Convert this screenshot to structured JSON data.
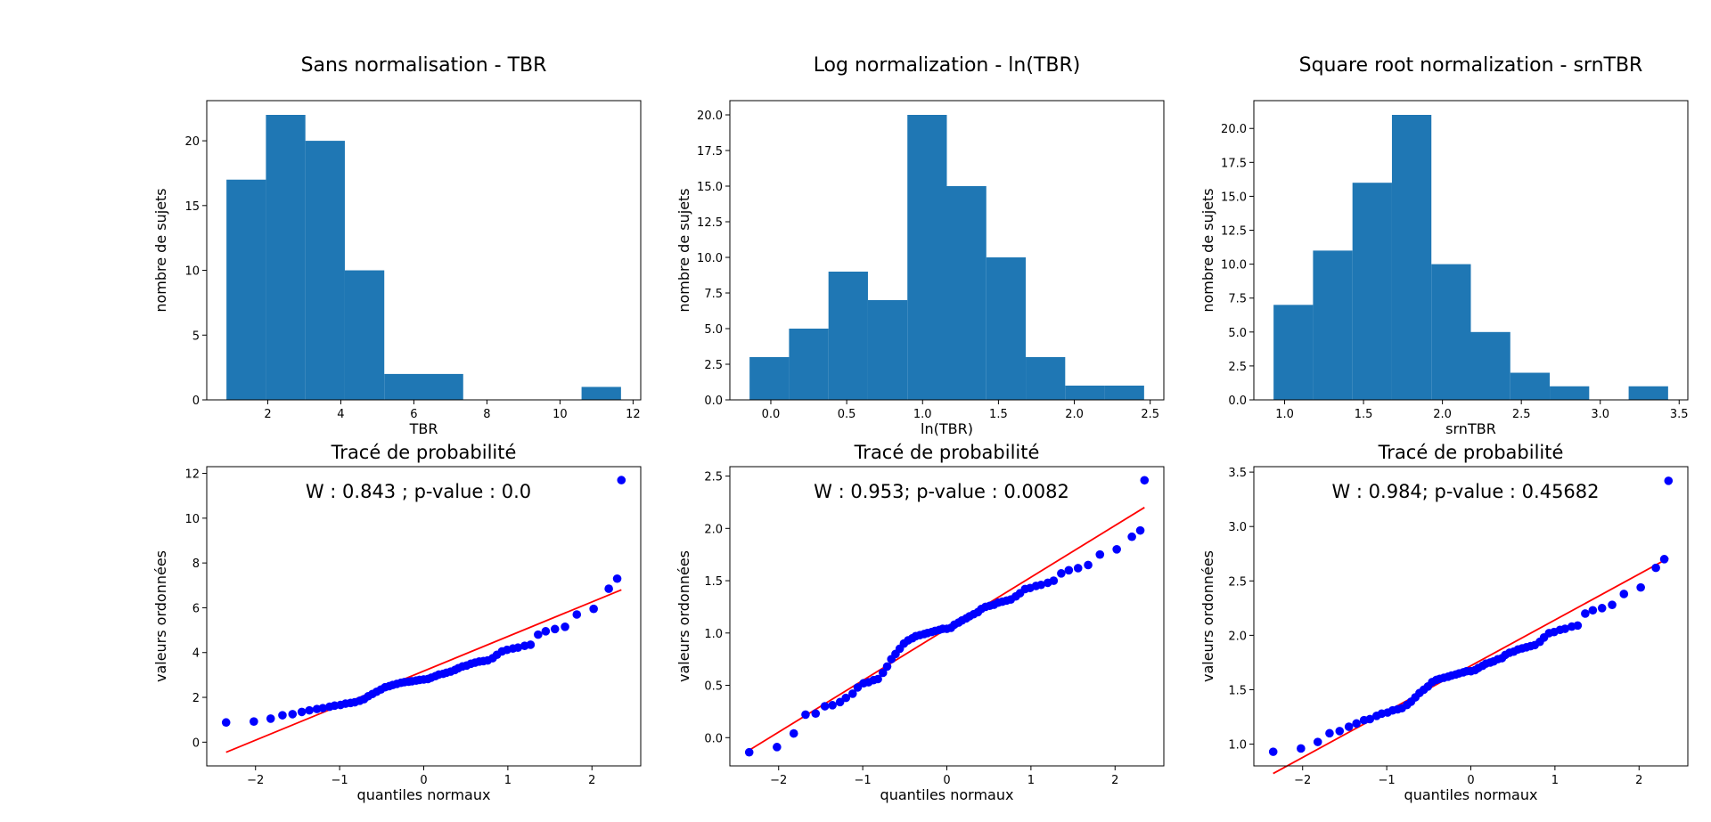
{
  "colors": {
    "bar": "#1f77b4",
    "points": "#0000ff",
    "fit_line": "#ff0000",
    "axes": "#000000"
  },
  "chart_data": [
    {
      "type": "histogram",
      "title": "Sans normalisation - TBR",
      "xlabel": "TBR",
      "ylabel": "nombre de sujets",
      "bin_edges": [
        0.87,
        1.95,
        3.03,
        4.11,
        5.19,
        6.27,
        7.35,
        8.43,
        9.51,
        10.59,
        11.67
      ],
      "counts": [
        17,
        22,
        20,
        10,
        2,
        2,
        0,
        0,
        0,
        1
      ],
      "xlim": [
        0.33,
        12.21
      ],
      "ylim": [
        0,
        23.1
      ],
      "xticks": [
        2,
        4,
        6,
        8,
        10,
        12
      ],
      "yticks": [
        0,
        5,
        10,
        15,
        20
      ],
      "ytick_labels": [
        "0",
        "5",
        "10",
        "15",
        "20"
      ]
    },
    {
      "type": "histogram",
      "title": "Log normalization - ln(TBR)",
      "xlabel": "ln(TBR)",
      "ylabel": "nombre de sujets",
      "bin_edges": [
        -0.14,
        0.12,
        0.38,
        0.64,
        0.9,
        1.16,
        1.42,
        1.68,
        1.94,
        2.2,
        2.46
      ],
      "counts": [
        3,
        5,
        9,
        7,
        20,
        15,
        10,
        3,
        1,
        1
      ],
      "xlim": [
        -0.27,
        2.59
      ],
      "ylim": [
        0,
        21
      ],
      "xticks": [
        0.0,
        0.5,
        1.0,
        1.5,
        2.0,
        2.5
      ],
      "xtick_labels": [
        "0.0",
        "0.5",
        "1.0",
        "1.5",
        "2.0",
        "2.5"
      ],
      "yticks": [
        0,
        2.5,
        5,
        7.5,
        10,
        12.5,
        15,
        17.5,
        20
      ],
      "ytick_labels": [
        "0.0",
        "2.5",
        "5.0",
        "7.5",
        "10.0",
        "12.5",
        "15.0",
        "17.5",
        "20.0"
      ]
    },
    {
      "type": "histogram",
      "title": "Square root normalization - srnTBR",
      "xlabel": "srnTBR",
      "ylabel": "nombre de sujets",
      "bin_edges": [
        0.93,
        1.18,
        1.43,
        1.68,
        1.93,
        2.18,
        2.43,
        2.68,
        2.93,
        3.18,
        3.43
      ],
      "counts": [
        7,
        11,
        16,
        21,
        10,
        5,
        2,
        1,
        0,
        1
      ],
      "xlim": [
        0.805,
        3.555
      ],
      "ylim": [
        0,
        22.05
      ],
      "xticks": [
        1.0,
        1.5,
        2.0,
        2.5,
        3.0,
        3.5
      ],
      "xtick_labels": [
        "1.0",
        "1.5",
        "2.0",
        "2.5",
        "3.0",
        "3.5"
      ],
      "yticks": [
        0,
        2.5,
        5,
        7.5,
        10,
        12.5,
        15,
        17.5,
        20
      ],
      "ytick_labels": [
        "0.0",
        "2.5",
        "5.0",
        "7.5",
        "10.0",
        "12.5",
        "15.0",
        "17.5",
        "20.0"
      ]
    },
    {
      "type": "scatter",
      "title": "Tracé de probabilité",
      "annotation": "W : 0.843 ; p-value : 0.0",
      "xlabel": "quantiles normaux",
      "ylabel": "valeurs ordonnées",
      "xlim": [
        -2.58,
        2.58
      ],
      "ylim": [
        -1.06,
        12.3
      ],
      "xticks": [
        -2,
        -1,
        0,
        1,
        2
      ],
      "yticks": [
        0,
        2,
        4,
        6,
        8,
        10,
        12
      ],
      "fit_line": {
        "x": [
          -2.35,
          2.35
        ],
        "y": [
          -0.45,
          6.8
        ]
      },
      "points": [
        [
          -2.35,
          0.88
        ],
        [
          -2.02,
          0.92
        ],
        [
          -1.82,
          1.05
        ],
        [
          -1.68,
          1.2
        ],
        [
          -1.56,
          1.25
        ],
        [
          -1.45,
          1.35
        ],
        [
          -1.36,
          1.42
        ],
        [
          -1.27,
          1.48
        ],
        [
          -1.2,
          1.52
        ],
        [
          -1.12,
          1.58
        ],
        [
          -1.06,
          1.63
        ],
        [
          -0.99,
          1.66
        ],
        [
          -0.93,
          1.72
        ],
        [
          -0.87,
          1.75
        ],
        [
          -0.82,
          1.78
        ],
        [
          -0.76,
          1.85
        ],
        [
          -0.71,
          1.92
        ],
        [
          -0.66,
          2.05
        ],
        [
          -0.61,
          2.15
        ],
        [
          -0.56,
          2.25
        ],
        [
          -0.51,
          2.35
        ],
        [
          -0.46,
          2.45
        ],
        [
          -0.41,
          2.5
        ],
        [
          -0.37,
          2.55
        ],
        [
          -0.32,
          2.6
        ],
        [
          -0.27,
          2.65
        ],
        [
          -0.23,
          2.68
        ],
        [
          -0.18,
          2.7
        ],
        [
          -0.14,
          2.72
        ],
        [
          -0.09,
          2.75
        ],
        [
          -0.05,
          2.78
        ],
        [
          0.0,
          2.8
        ],
        [
          0.05,
          2.82
        ],
        [
          0.09,
          2.88
        ],
        [
          0.14,
          2.95
        ],
        [
          0.18,
          3.02
        ],
        [
          0.23,
          3.05
        ],
        [
          0.27,
          3.1
        ],
        [
          0.32,
          3.15
        ],
        [
          0.37,
          3.22
        ],
        [
          0.41,
          3.3
        ],
        [
          0.46,
          3.38
        ],
        [
          0.51,
          3.42
        ],
        [
          0.56,
          3.5
        ],
        [
          0.61,
          3.55
        ],
        [
          0.66,
          3.6
        ],
        [
          0.71,
          3.62
        ],
        [
          0.76,
          3.65
        ],
        [
          0.82,
          3.75
        ],
        [
          0.87,
          3.9
        ],
        [
          0.93,
          4.05
        ],
        [
          0.99,
          4.12
        ],
        [
          1.06,
          4.18
        ],
        [
          1.12,
          4.22
        ],
        [
          1.2,
          4.3
        ],
        [
          1.27,
          4.35
        ],
        [
          1.36,
          4.8
        ],
        [
          1.45,
          4.95
        ],
        [
          1.56,
          5.05
        ],
        [
          1.68,
          5.15
        ],
        [
          1.82,
          5.7
        ],
        [
          2.02,
          5.95
        ],
        [
          2.2,
          6.85
        ],
        [
          2.3,
          7.3
        ],
        [
          2.35,
          11.7
        ]
      ]
    },
    {
      "type": "scatter",
      "title": "Tracé de probabilité",
      "annotation": "W : 0.953; p-value : 0.0082",
      "xlabel": "quantiles normaux",
      "ylabel": "valeurs ordonnées",
      "xlim": [
        -2.58,
        2.58
      ],
      "ylim": [
        -0.27,
        2.59
      ],
      "xticks": [
        -2,
        -1,
        0,
        1,
        2
      ],
      "yticks": [
        0,
        0.5,
        1,
        1.5,
        2,
        2.5
      ],
      "ytick_labels": [
        "0.0",
        "0.5",
        "1.0",
        "1.5",
        "2.0",
        "2.5"
      ],
      "fit_line": {
        "x": [
          -2.35,
          2.35
        ],
        "y": [
          -0.12,
          2.2
        ]
      },
      "points": [
        [
          -2.35,
          -0.14
        ],
        [
          -2.02,
          -0.09
        ],
        [
          -1.82,
          0.04
        ],
        [
          -1.68,
          0.22
        ],
        [
          -1.56,
          0.23
        ],
        [
          -1.45,
          0.3
        ],
        [
          -1.36,
          0.31
        ],
        [
          -1.27,
          0.34
        ],
        [
          -1.2,
          0.38
        ],
        [
          -1.12,
          0.42
        ],
        [
          -1.06,
          0.48
        ],
        [
          -0.99,
          0.52
        ],
        [
          -0.93,
          0.53
        ],
        [
          -0.87,
          0.55
        ],
        [
          -0.82,
          0.56
        ],
        [
          -0.76,
          0.62
        ],
        [
          -0.71,
          0.68
        ],
        [
          -0.66,
          0.75
        ],
        [
          -0.61,
          0.8
        ],
        [
          -0.56,
          0.85
        ],
        [
          -0.51,
          0.9
        ],
        [
          -0.46,
          0.93
        ],
        [
          -0.41,
          0.95
        ],
        [
          -0.37,
          0.97
        ],
        [
          -0.32,
          0.98
        ],
        [
          -0.27,
          0.99
        ],
        [
          -0.23,
          1.0
        ],
        [
          -0.18,
          1.01
        ],
        [
          -0.14,
          1.02
        ],
        [
          -0.09,
          1.03
        ],
        [
          -0.05,
          1.04
        ],
        [
          0.0,
          1.04
        ],
        [
          0.05,
          1.05
        ],
        [
          0.09,
          1.08
        ],
        [
          0.14,
          1.1
        ],
        [
          0.18,
          1.12
        ],
        [
          0.23,
          1.14
        ],
        [
          0.27,
          1.16
        ],
        [
          0.32,
          1.18
        ],
        [
          0.37,
          1.2
        ],
        [
          0.41,
          1.23
        ],
        [
          0.46,
          1.25
        ],
        [
          0.51,
          1.26
        ],
        [
          0.56,
          1.27
        ],
        [
          0.61,
          1.29
        ],
        [
          0.66,
          1.3
        ],
        [
          0.71,
          1.31
        ],
        [
          0.76,
          1.32
        ],
        [
          0.82,
          1.35
        ],
        [
          0.87,
          1.38
        ],
        [
          0.93,
          1.42
        ],
        [
          0.99,
          1.43
        ],
        [
          1.06,
          1.45
        ],
        [
          1.12,
          1.46
        ],
        [
          1.2,
          1.48
        ],
        [
          1.27,
          1.5
        ],
        [
          1.36,
          1.57
        ],
        [
          1.45,
          1.6
        ],
        [
          1.56,
          1.62
        ],
        [
          1.68,
          1.65
        ],
        [
          1.82,
          1.75
        ],
        [
          2.02,
          1.8
        ],
        [
          2.2,
          1.92
        ],
        [
          2.3,
          1.98
        ],
        [
          2.35,
          2.46
        ]
      ]
    },
    {
      "type": "scatter",
      "title": "Tracé de probabilité",
      "annotation": "W : 0.984; p-value : 0.45682",
      "xlabel": "quantiles normaux",
      "ylabel": "valeurs ordonnées",
      "xlim": [
        -2.58,
        2.58
      ],
      "ylim": [
        0.8,
        3.55
      ],
      "xticks": [
        -2,
        -1,
        0,
        1,
        2
      ],
      "yticks": [
        1,
        1.5,
        2,
        2.5,
        3,
        3.5
      ],
      "ytick_labels": [
        "1.0",
        "1.5",
        "2.0",
        "2.5",
        "3.0",
        "3.5"
      ],
      "fit_line": {
        "x": [
          -2.35,
          2.35
        ],
        "y": [
          0.73,
          2.71
        ]
      },
      "points": [
        [
          -2.35,
          0.93
        ],
        [
          -2.02,
          0.96
        ],
        [
          -1.82,
          1.02
        ],
        [
          -1.68,
          1.1
        ],
        [
          -1.56,
          1.12
        ],
        [
          -1.45,
          1.16
        ],
        [
          -1.36,
          1.19
        ],
        [
          -1.27,
          1.22
        ],
        [
          -1.2,
          1.23
        ],
        [
          -1.12,
          1.26
        ],
        [
          -1.06,
          1.28
        ],
        [
          -0.99,
          1.29
        ],
        [
          -0.93,
          1.31
        ],
        [
          -0.87,
          1.32
        ],
        [
          -0.82,
          1.33
        ],
        [
          -0.76,
          1.36
        ],
        [
          -0.71,
          1.39
        ],
        [
          -0.66,
          1.43
        ],
        [
          -0.61,
          1.47
        ],
        [
          -0.56,
          1.5
        ],
        [
          -0.51,
          1.53
        ],
        [
          -0.46,
          1.57
        ],
        [
          -0.41,
          1.59
        ],
        [
          -0.37,
          1.6
        ],
        [
          -0.32,
          1.61
        ],
        [
          -0.27,
          1.62
        ],
        [
          -0.23,
          1.63
        ],
        [
          -0.18,
          1.64
        ],
        [
          -0.14,
          1.65
        ],
        [
          -0.09,
          1.66
        ],
        [
          -0.05,
          1.67
        ],
        [
          0.0,
          1.67
        ],
        [
          0.05,
          1.68
        ],
        [
          0.09,
          1.7
        ],
        [
          0.14,
          1.72
        ],
        [
          0.18,
          1.74
        ],
        [
          0.23,
          1.75
        ],
        [
          0.27,
          1.76
        ],
        [
          0.32,
          1.78
        ],
        [
          0.37,
          1.79
        ],
        [
          0.41,
          1.82
        ],
        [
          0.46,
          1.84
        ],
        [
          0.51,
          1.85
        ],
        [
          0.56,
          1.87
        ],
        [
          0.61,
          1.88
        ],
        [
          0.66,
          1.89
        ],
        [
          0.71,
          1.9
        ],
        [
          0.76,
          1.91
        ],
        [
          0.82,
          1.94
        ],
        [
          0.87,
          1.98
        ],
        [
          0.93,
          2.02
        ],
        [
          0.99,
          2.03
        ],
        [
          1.06,
          2.05
        ],
        [
          1.12,
          2.06
        ],
        [
          1.2,
          2.08
        ],
        [
          1.27,
          2.09
        ],
        [
          1.36,
          2.2
        ],
        [
          1.45,
          2.23
        ],
        [
          1.56,
          2.25
        ],
        [
          1.68,
          2.28
        ],
        [
          1.82,
          2.38
        ],
        [
          2.02,
          2.44
        ],
        [
          2.2,
          2.62
        ],
        [
          2.3,
          2.7
        ],
        [
          2.35,
          3.42
        ]
      ]
    }
  ]
}
